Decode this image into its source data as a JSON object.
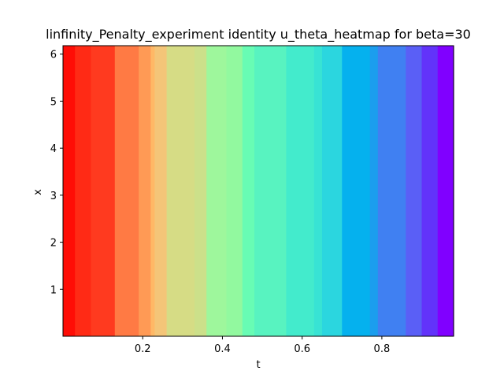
{
  "chart_data": {
    "type": "heatmap",
    "title": "linfinity_Penalty_experiment identity u_theta_heatmap for beta=30",
    "xlabel": "t",
    "ylabel": "x",
    "xlim": [
      0.0,
      0.98
    ],
    "ylim": [
      0.0,
      6.18
    ],
    "xticks": [
      {
        "value": 0.2,
        "label": "0.2"
      },
      {
        "value": 0.4,
        "label": "0.4"
      },
      {
        "value": 0.6,
        "label": "0.6"
      },
      {
        "value": 0.8,
        "label": "0.8"
      }
    ],
    "yticks": [
      {
        "value": 1,
        "label": "1"
      },
      {
        "value": 2,
        "label": "2"
      },
      {
        "value": 3,
        "label": "3"
      },
      {
        "value": 4,
        "label": "4"
      },
      {
        "value": 5,
        "label": "5"
      },
      {
        "value": 6,
        "label": "6"
      }
    ],
    "colormap": "rainbow",
    "bands": [
      {
        "t_start": 0.0,
        "t_end": 0.03,
        "color": "#ff0d06"
      },
      {
        "t_start": 0.03,
        "t_end": 0.07,
        "color": "#ff2a15"
      },
      {
        "t_start": 0.07,
        "t_end": 0.13,
        "color": "#ff3a1f"
      },
      {
        "t_start": 0.13,
        "t_end": 0.19,
        "color": "#ff7a44"
      },
      {
        "t_start": 0.19,
        "t_end": 0.22,
        "color": "#ff9a55"
      },
      {
        "t_start": 0.22,
        "t_end": 0.23,
        "color": "#ffb866"
      },
      {
        "t_start": 0.23,
        "t_end": 0.26,
        "color": "#f4c578"
      },
      {
        "t_start": 0.26,
        "t_end": 0.33,
        "color": "#d6dc85"
      },
      {
        "t_start": 0.33,
        "t_end": 0.36,
        "color": "#cce08a"
      },
      {
        "t_start": 0.36,
        "t_end": 0.41,
        "color": "#9ef79c"
      },
      {
        "t_start": 0.41,
        "t_end": 0.45,
        "color": "#92f99f"
      },
      {
        "t_start": 0.45,
        "t_end": 0.48,
        "color": "#68fcb4"
      },
      {
        "t_start": 0.48,
        "t_end": 0.56,
        "color": "#58f3c0"
      },
      {
        "t_start": 0.56,
        "t_end": 0.63,
        "color": "#43ebcc"
      },
      {
        "t_start": 0.63,
        "t_end": 0.65,
        "color": "#38e3d4"
      },
      {
        "t_start": 0.65,
        "t_end": 0.7,
        "color": "#2bd6df"
      },
      {
        "t_start": 0.7,
        "t_end": 0.77,
        "color": "#05b1ee"
      },
      {
        "t_start": 0.77,
        "t_end": 0.79,
        "color": "#1b9eee"
      },
      {
        "t_start": 0.79,
        "t_end": 0.86,
        "color": "#4080f2"
      },
      {
        "t_start": 0.86,
        "t_end": 0.9,
        "color": "#5a5ff6"
      },
      {
        "t_start": 0.9,
        "t_end": 0.94,
        "color": "#6233fa"
      },
      {
        "t_start": 0.94,
        "t_end": 0.98,
        "color": "#8000ff"
      }
    ]
  }
}
